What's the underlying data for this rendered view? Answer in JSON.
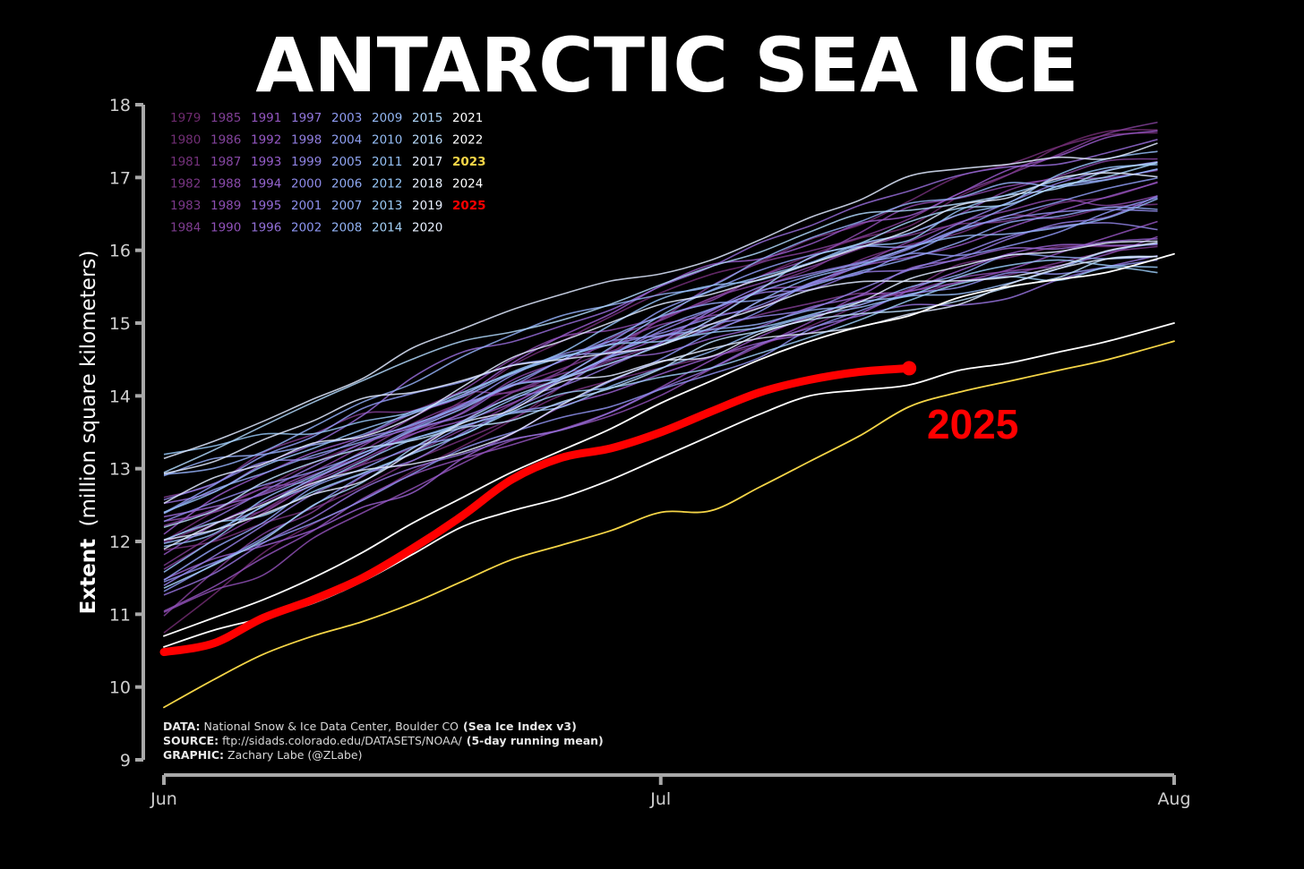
{
  "chart_data": {
    "type": "line",
    "title": "ANTARCTIC SEA ICE",
    "ylabel_bold": "Extent",
    "ylabel_rest": "(million square kilometers)",
    "xlabel": "",
    "ylim": [
      9,
      18
    ],
    "yticks": [
      "9",
      "10",
      "11",
      "12",
      "13",
      "14",
      "15",
      "16",
      "17",
      "18"
    ],
    "x_axis": {
      "start_day": 0,
      "end_day": 61
    },
    "xticks": [
      {
        "label": "Jun",
        "day": 0
      },
      {
        "label": "Jul",
        "day": 30
      },
      {
        "label": "Aug",
        "day": 61
      }
    ],
    "grid": false,
    "legend_position": "top-left",
    "legend_columns": [
      [
        "1979",
        "1980",
        "1981",
        "1982",
        "1983",
        "1984"
      ],
      [
        "1985",
        "1986",
        "1987",
        "1988",
        "1989",
        "1990"
      ],
      [
        "1991",
        "1992",
        "1993",
        "1994",
        "1995",
        "1996"
      ],
      [
        "1997",
        "1998",
        "1999",
        "2000",
        "2001",
        "2002"
      ],
      [
        "2003",
        "2004",
        "2005",
        "2006",
        "2007",
        "2008"
      ],
      [
        "2009",
        "2010",
        "2011",
        "2012",
        "2013",
        "2014"
      ],
      [
        "2015",
        "2016",
        "2017",
        "2018",
        "2019",
        "2020"
      ],
      [
        "2021",
        "2022",
        "2023",
        "2024",
        "2025",
        ""
      ]
    ],
    "highlight_series": [
      {
        "name": "2025",
        "color": "#ff0000",
        "x": [
          0,
          3,
          6,
          9,
          12,
          15,
          18,
          21,
          24,
          27,
          30,
          33,
          36,
          39,
          42,
          45
        ],
        "values": [
          10.48,
          10.6,
          10.95,
          11.2,
          11.5,
          11.9,
          12.35,
          12.85,
          13.15,
          13.28,
          13.5,
          13.78,
          14.05,
          14.22,
          14.33,
          14.38
        ]
      },
      {
        "name": "2023",
        "color": "#f5d547",
        "x": [
          0,
          3,
          6,
          9,
          12,
          15,
          18,
          21,
          24,
          27,
          30,
          33,
          36,
          39,
          42,
          45,
          48,
          51,
          54,
          57,
          61
        ],
        "values": [
          9.72,
          10.1,
          10.45,
          10.7,
          10.9,
          11.15,
          11.45,
          11.75,
          11.95,
          12.15,
          12.4,
          12.42,
          12.75,
          13.1,
          13.45,
          13.85,
          14.05,
          14.2,
          14.35,
          14.5,
          14.75
        ]
      },
      {
        "name": "2024",
        "color": "#ffffff",
        "x": [
          0,
          3,
          6,
          9,
          12,
          15,
          18,
          21,
          24,
          27,
          30,
          33,
          36,
          39,
          42,
          45,
          48,
          51,
          54,
          57,
          61
        ],
        "values": [
          10.55,
          10.78,
          10.95,
          11.15,
          11.45,
          11.82,
          12.2,
          12.42,
          12.6,
          12.85,
          13.15,
          13.45,
          13.75,
          14.0,
          14.08,
          14.15,
          14.35,
          14.45,
          14.6,
          14.75,
          15.0
        ]
      },
      {
        "name": "2022",
        "color": "#ffffff",
        "x": [
          0,
          3,
          6,
          9,
          12,
          15,
          18,
          21,
          24,
          27,
          30,
          33,
          36,
          39,
          42,
          45,
          48,
          51,
          54,
          57,
          61
        ],
        "values": [
          10.7,
          10.95,
          11.2,
          11.5,
          11.85,
          12.25,
          12.6,
          12.95,
          13.25,
          13.55,
          13.9,
          14.2,
          14.5,
          14.75,
          14.95,
          15.1,
          15.35,
          15.5,
          15.6,
          15.7,
          15.95
        ]
      }
    ],
    "credits": [
      {
        "label": "DATA:",
        "text": "National Snow & Ice Data Center, Boulder CO",
        "extra": "(Sea Ice Index v3)"
      },
      {
        "label": "SOURCE:",
        "text": "ftp://sidads.colorado.edu/DATASETS/NOAA/",
        "extra": "(5-day running mean)"
      },
      {
        "label": "GRAPHIC:",
        "text": "Zachary Labe (@ZLabe)",
        "extra": ""
      }
    ],
    "annotation": "2025"
  }
}
